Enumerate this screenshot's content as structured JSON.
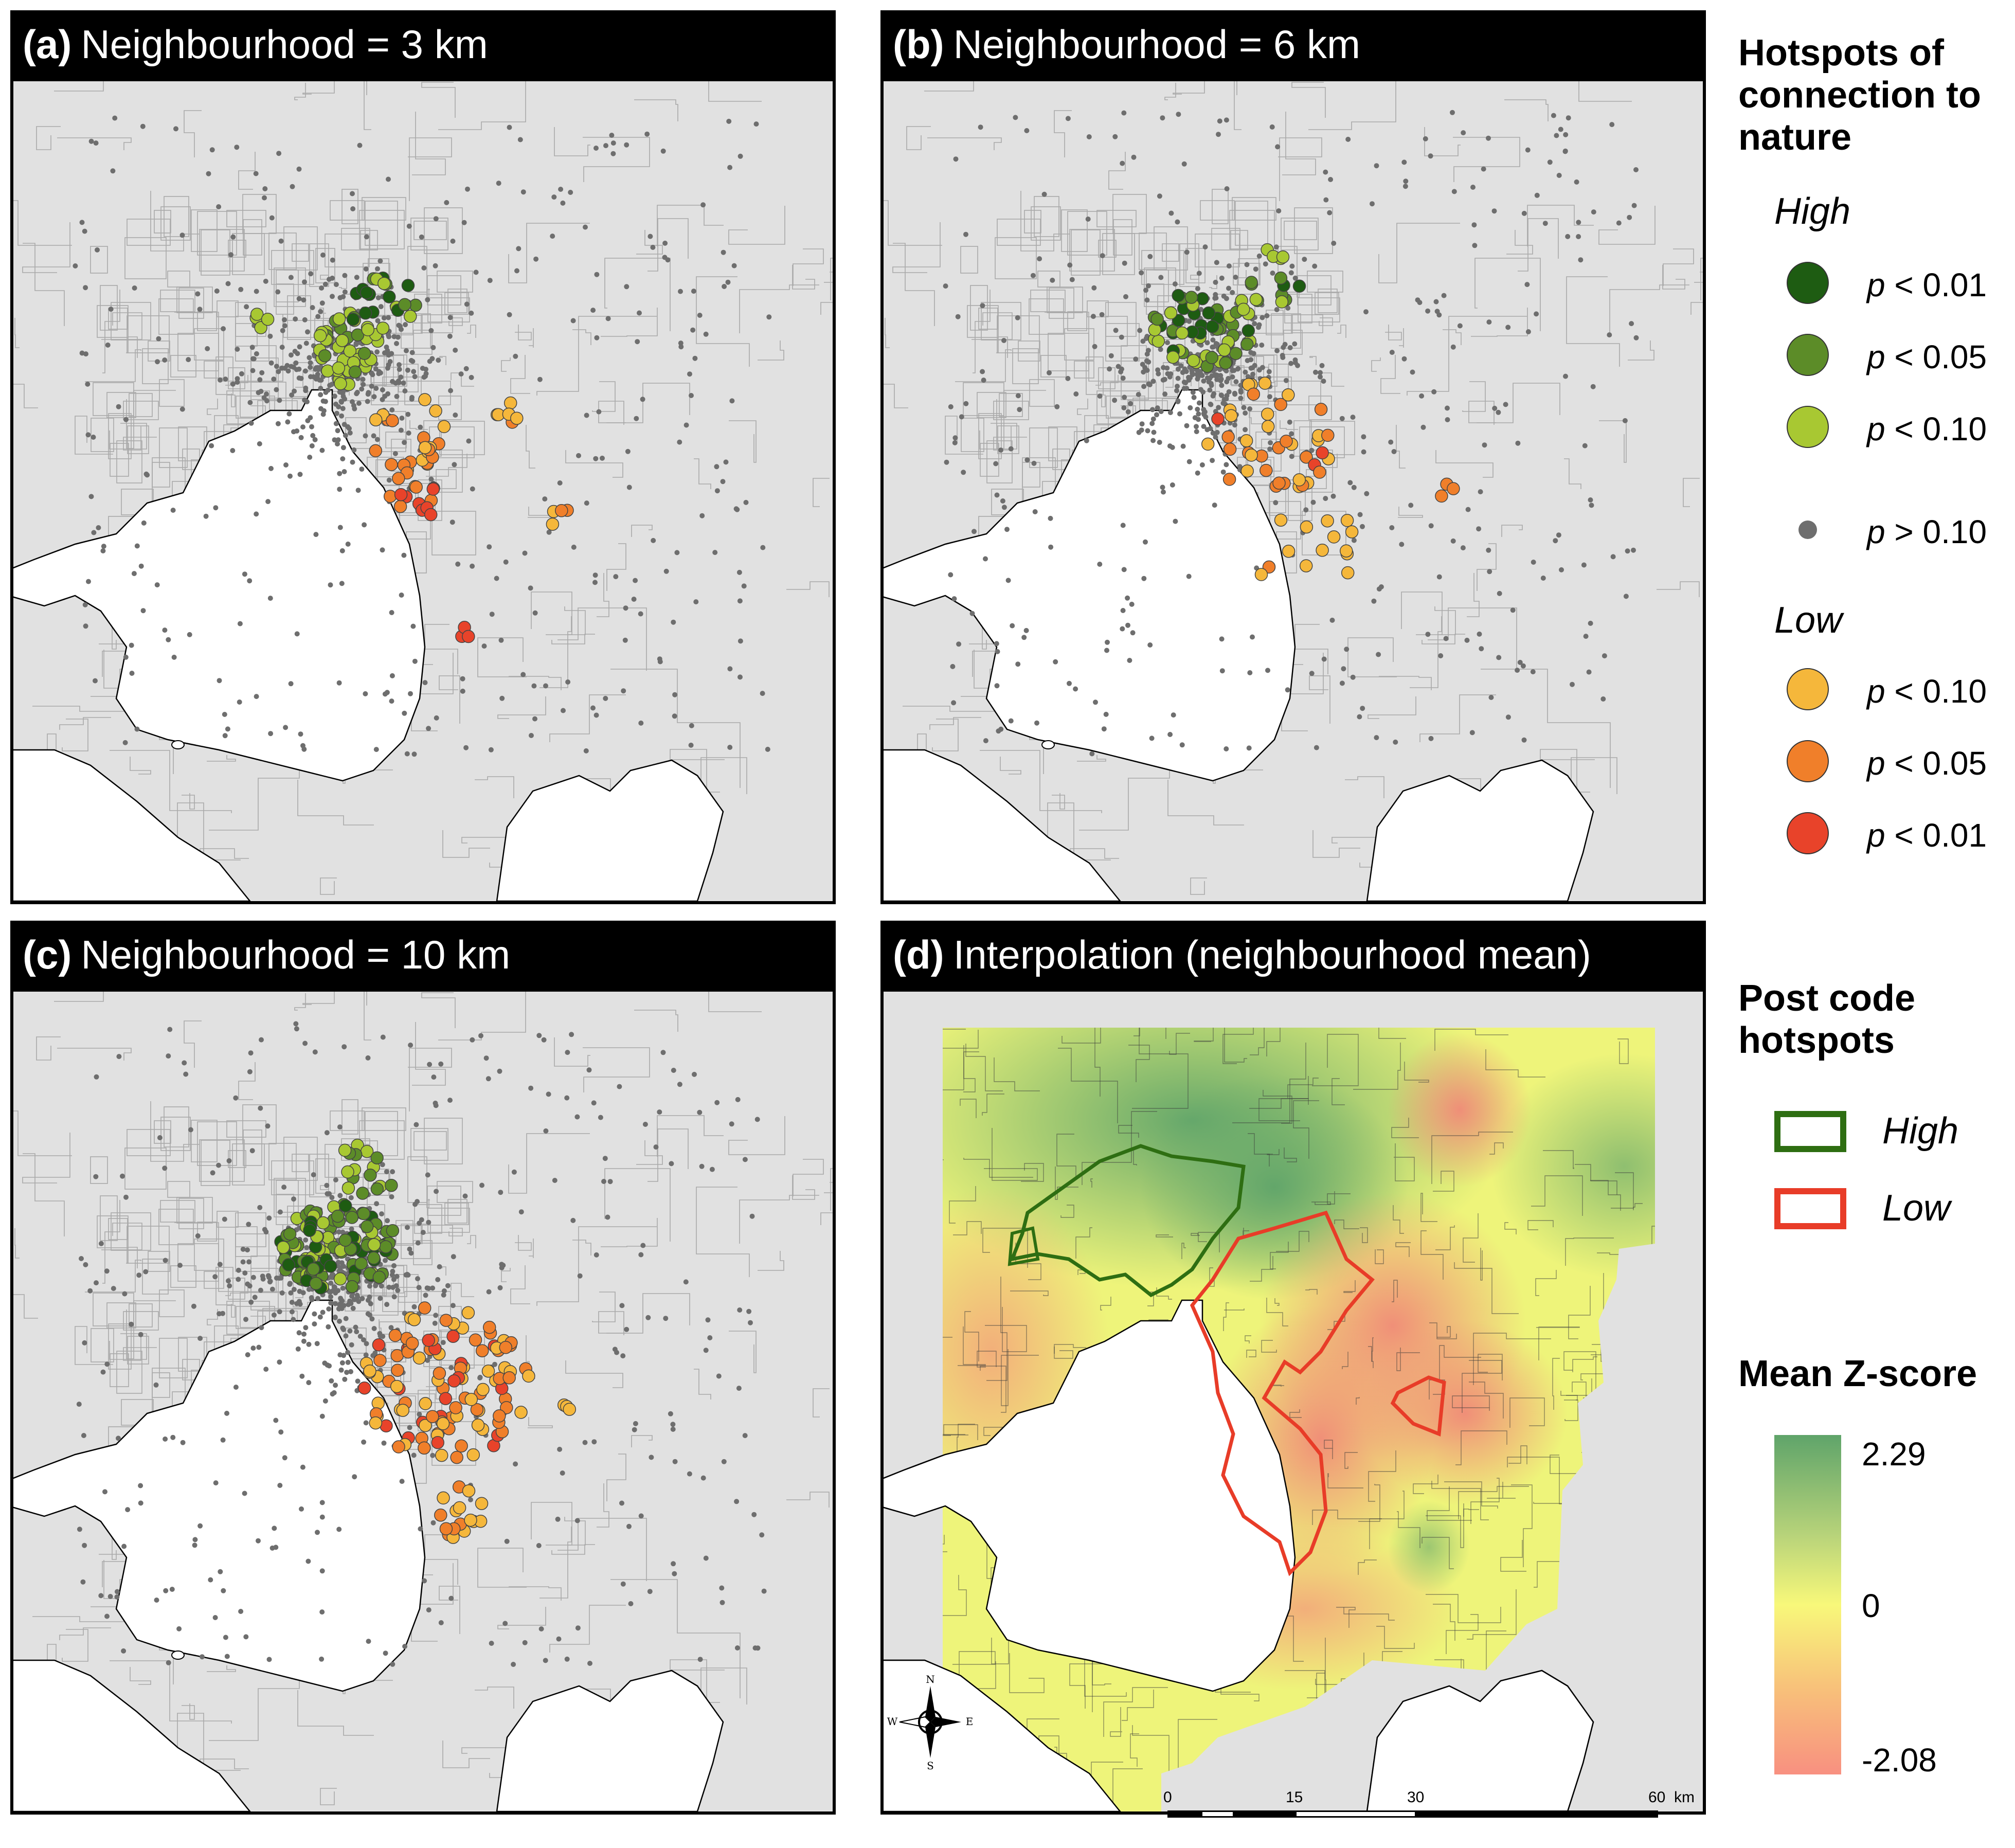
{
  "panels": [
    {
      "id": "a",
      "label": "(a)",
      "title": "Neighbourhood = 3 km"
    },
    {
      "id": "b",
      "label": "(b)",
      "title": "Neighbourhood = 6 km"
    },
    {
      "id": "c",
      "label": "(c)",
      "title": "Neighbourhood = 10 km"
    },
    {
      "id": "d",
      "label": "(d)",
      "title": "Interpolation (neighbourhood mean)"
    }
  ],
  "legend": {
    "hotspots_title": "Hotspots of connection to nature",
    "high_label": "High",
    "low_label": "Low",
    "classes": [
      {
        "group": "high",
        "p_symbol": "p",
        "text": " < 0.01",
        "color": "#1e5c12"
      },
      {
        "group": "high",
        "p_symbol": "p",
        "text": " < 0.05",
        "color": "#5c8c28"
      },
      {
        "group": "high",
        "p_symbol": "p",
        "text": " < 0.10",
        "color": "#a8c832"
      },
      {
        "group": "none",
        "p_symbol": "p",
        "text": " > 0.10",
        "color": "#6e6e6e"
      },
      {
        "group": "low",
        "p_symbol": "p",
        "text": " < 0.10",
        "color": "#f5b73b"
      },
      {
        "group": "low",
        "p_symbol": "p",
        "text": " < 0.05",
        "color": "#f07f2a"
      },
      {
        "group": "low",
        "p_symbol": "p",
        "text": " < 0.01",
        "color": "#e8432a"
      }
    ],
    "postcode_title": "Post code hotspots",
    "postcode_high": "High",
    "postcode_low": "Low",
    "postcode_high_color": "#2e6e12",
    "postcode_low_color": "#e83c28",
    "zscore_title": "Mean Z-score",
    "zscore_max": "2.29",
    "zscore_mid": "0",
    "zscore_min": "-2.08"
  },
  "compass": {
    "n": "N",
    "s": "S",
    "e": "E",
    "w": "W"
  },
  "scalebar": {
    "labels": [
      "0",
      "15",
      "30",
      "60"
    ],
    "unit": "km"
  }
}
